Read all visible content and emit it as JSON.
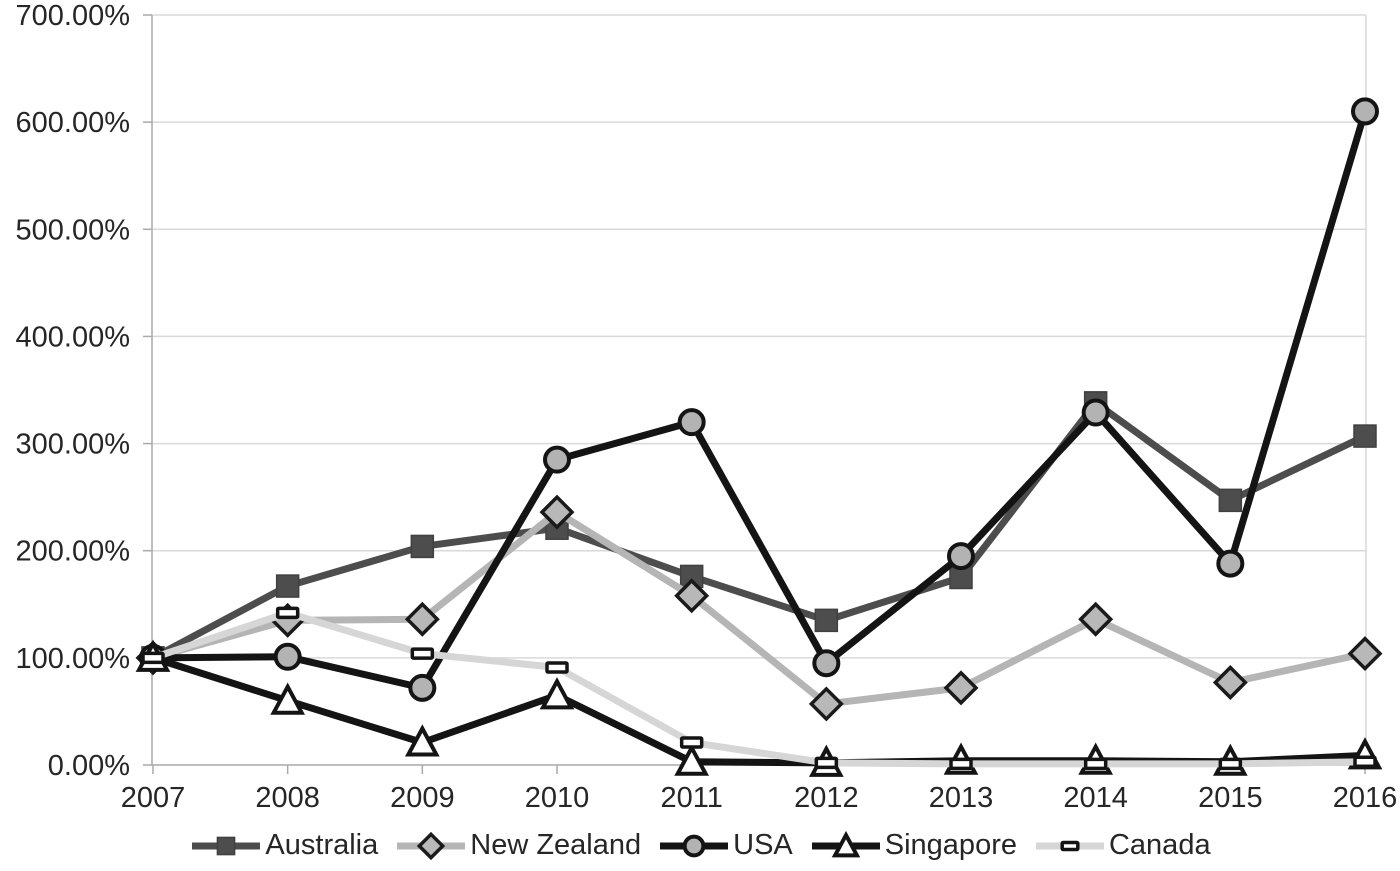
{
  "chart_data": {
    "type": "line",
    "title": "",
    "xlabel": "",
    "ylabel": "",
    "categories": [
      "2007",
      "2008",
      "2009",
      "2010",
      "2011",
      "2012",
      "2013",
      "2014",
      "2015",
      "2016"
    ],
    "series": [
      {
        "name": "Australia",
        "marker": "square",
        "line_color": "#4d4d4d",
        "marker_fill": "#4d4d4d",
        "marker_stroke": "#404040",
        "values": [
          100,
          167,
          204,
          221,
          176,
          135,
          175,
          338,
          247,
          307
        ]
      },
      {
        "name": "New Zealand",
        "marker": "diamond",
        "line_color": "#b5b5b5",
        "marker_fill": "#b8b8b8",
        "marker_stroke": "#1a1a1a",
        "values": [
          100,
          135,
          136,
          236,
          158,
          57,
          72,
          136,
          77,
          104
        ]
      },
      {
        "name": "USA",
        "marker": "circle",
        "line_color": "#141414",
        "marker_fill": "#b3b3b3",
        "marker_stroke": "#141414",
        "values": [
          100,
          101,
          72,
          285,
          320,
          95,
          195,
          329,
          188,
          610
        ]
      },
      {
        "name": "Singapore",
        "marker": "triangle",
        "line_color": "#141414",
        "marker_fill": "#ffffff",
        "marker_stroke": "#141414",
        "values": [
          100,
          60,
          21,
          65,
          3,
          2,
          4,
          4,
          3,
          9
        ]
      },
      {
        "name": "Canada",
        "marker": "dash",
        "line_color": "#d6d6d6",
        "marker_fill": "#ffffff",
        "marker_stroke": "#141414",
        "values": [
          100,
          142,
          104,
          91,
          21,
          2,
          1,
          1,
          1,
          3
        ]
      }
    ],
    "ylim": [
      0,
      700
    ],
    "y_tick_step": 100,
    "y_tick_labels": [
      "0.00%",
      "100.00%",
      "200.00%",
      "300.00%",
      "400.00%",
      "500.00%",
      "600.00%",
      "700.00%"
    ],
    "value_unit": "percent",
    "grid": "horizontal",
    "legend_position": "bottom",
    "colors": {
      "background": "#ffffff",
      "gridline": "#d9d9d9",
      "border": "#d9d9d9",
      "axis": "#a9a9a9",
      "text": "#262626"
    }
  }
}
